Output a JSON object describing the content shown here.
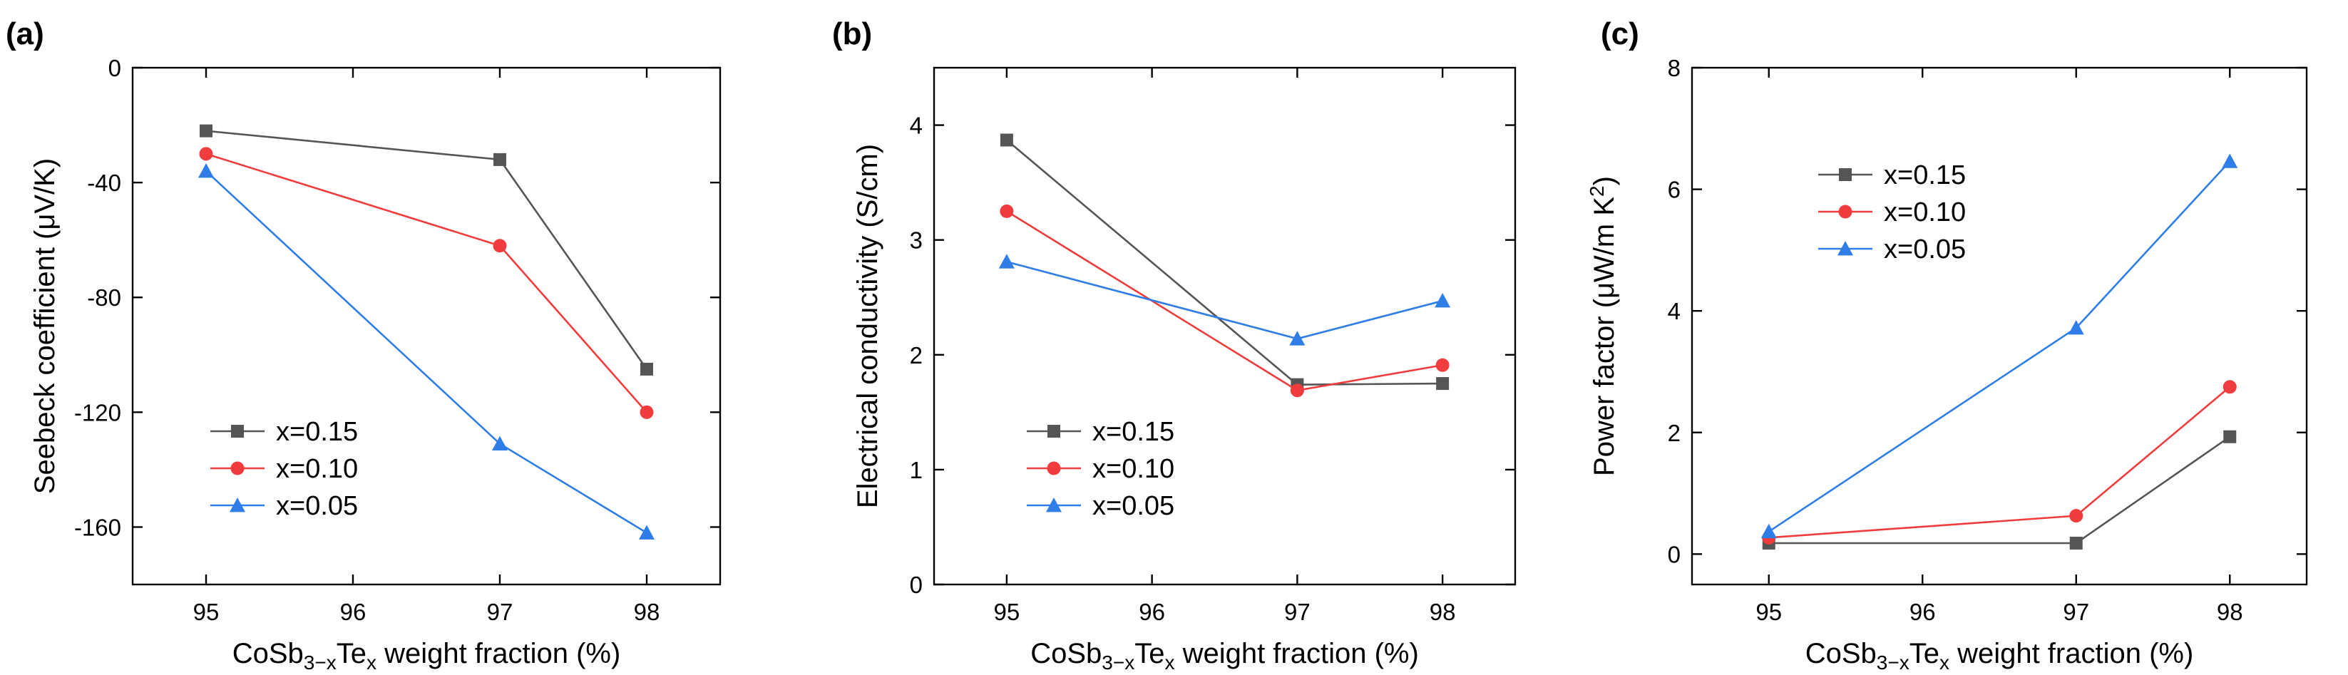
{
  "colors": {
    "x015": "#555555",
    "x010": "#f03c3c",
    "x005": "#2f7ee8"
  },
  "chart_data": [
    {
      "panel_label": "(a)",
      "type": "line",
      "title": "",
      "xlabel": {
        "base": "CoSb",
        "sub1": "3−x",
        "mid": "Te",
        "sub2": "x",
        "tail": " weight fraction (%)"
      },
      "ylabel": "Seebeck coefficient (μV/K)",
      "xlim": [
        94.5,
        98.5
      ],
      "ylim": [
        -180,
        0
      ],
      "xticks": [
        95,
        96,
        97,
        98
      ],
      "yticks": [
        0,
        -40,
        -80,
        -120,
        -160
      ],
      "x": [
        95,
        97,
        98
      ],
      "legend_position": "bottom-left",
      "series": [
        {
          "name": "x=0.15",
          "color": "#555555",
          "marker": "square",
          "values": [
            -22,
            -32,
            -105
          ]
        },
        {
          "name": "x=0.10",
          "color": "#f03c3c",
          "marker": "circle",
          "values": [
            -30,
            -62,
            -120
          ]
        },
        {
          "name": "x=0.05",
          "color": "#2f7ee8",
          "marker": "triangle",
          "values": [
            -36,
            -131,
            -162
          ]
        }
      ]
    },
    {
      "panel_label": "(b)",
      "type": "line",
      "title": "",
      "xlabel": {
        "base": "CoSb",
        "sub1": "3−x",
        "mid": "Te",
        "sub2": "x",
        "tail": " weight fraction (%)"
      },
      "ylabel": "Electrical conductivity (S/cm)",
      "xlim": [
        94.5,
        98.5
      ],
      "ylim": [
        0,
        4.5
      ],
      "xticks": [
        95,
        96,
        97,
        98
      ],
      "yticks": [
        0,
        1,
        2,
        3,
        4
      ],
      "x": [
        95,
        97,
        98
      ],
      "legend_position": "bottom-left",
      "series": [
        {
          "name": "x=0.15",
          "color": "#555555",
          "marker": "square",
          "values": [
            3.87,
            1.74,
            1.75
          ]
        },
        {
          "name": "x=0.10",
          "color": "#f03c3c",
          "marker": "circle",
          "values": [
            3.25,
            1.69,
            1.91
          ]
        },
        {
          "name": "x=0.05",
          "color": "#2f7ee8",
          "marker": "triangle",
          "values": [
            2.81,
            2.14,
            2.47
          ]
        }
      ]
    },
    {
      "panel_label": "(c)",
      "type": "line",
      "title": "",
      "xlabel": {
        "base": "CoSb",
        "sub1": "3−x",
        "mid": "Te",
        "sub2": "x",
        "tail": " weight fraction (%)"
      },
      "ylabel": "Power factor (μW/m K",
      "ylabel_sup": "2",
      "ylabel_tail": ")",
      "xlim": [
        94.5,
        98.5
      ],
      "ylim": [
        -0.5,
        8
      ],
      "xticks": [
        95,
        96,
        97,
        98
      ],
      "yticks": [
        0,
        2,
        4,
        6,
        8
      ],
      "x": [
        95,
        97,
        98
      ],
      "legend_position": "top-left",
      "series": [
        {
          "name": "x=0.15",
          "color": "#555555",
          "marker": "square",
          "values": [
            0.18,
            0.18,
            1.93
          ]
        },
        {
          "name": "x=0.10",
          "color": "#f03c3c",
          "marker": "circle",
          "values": [
            0.27,
            0.63,
            2.75
          ]
        },
        {
          "name": "x=0.05",
          "color": "#2f7ee8",
          "marker": "triangle",
          "values": [
            0.37,
            3.72,
            6.46
          ]
        }
      ]
    }
  ]
}
